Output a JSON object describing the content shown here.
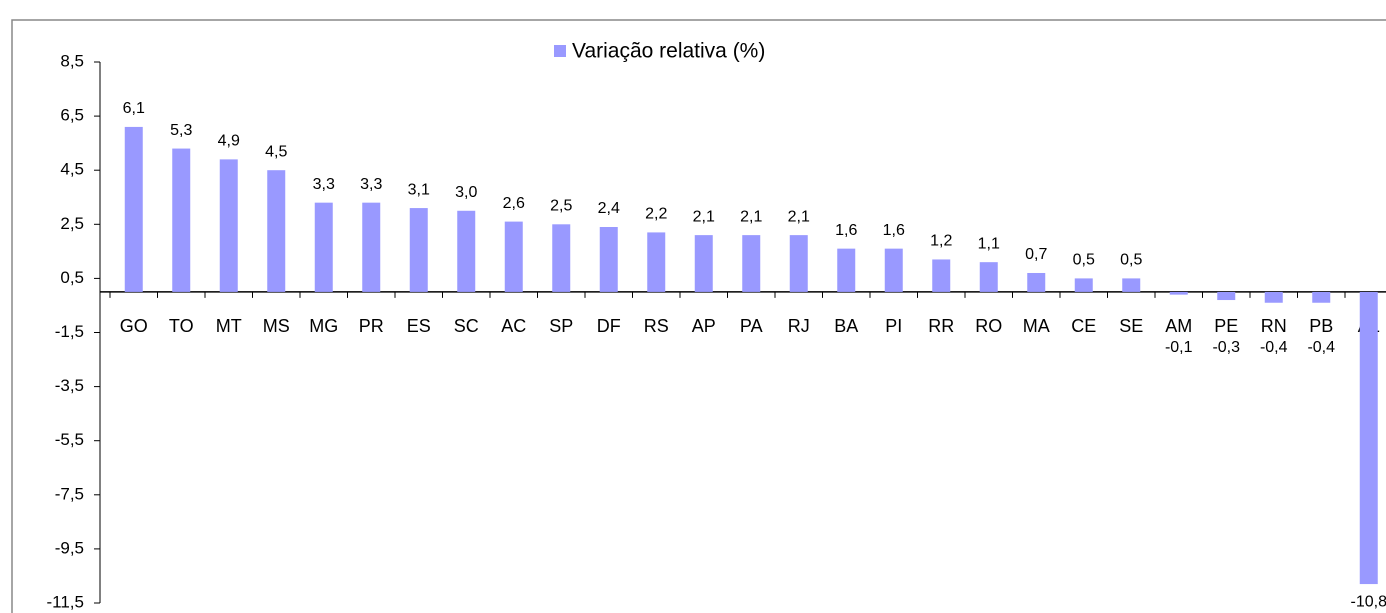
{
  "chart_data": {
    "type": "bar",
    "categories": [
      "GO",
      "TO",
      "MT",
      "MS",
      "MG",
      "PR",
      "ES",
      "SC",
      "AC",
      "SP",
      "DF",
      "RS",
      "AP",
      "PA",
      "RJ",
      "BA",
      "PI",
      "RR",
      "RO",
      "MA",
      "CE",
      "SE",
      "AM",
      "PE",
      "RN",
      "PB",
      "AL"
    ],
    "series": [
      {
        "name": "Variação relativa (%)",
        "color": "#9999ff",
        "values": [
          6.1,
          5.3,
          4.9,
          4.5,
          3.3,
          3.3,
          3.1,
          3.0,
          2.6,
          2.5,
          2.4,
          2.2,
          2.1,
          2.1,
          2.1,
          1.6,
          1.6,
          1.2,
          1.1,
          0.7,
          0.5,
          0.5,
          -0.1,
          -0.3,
          -0.4,
          -0.4,
          -10.8
        ],
        "value_labels": [
          "6,1",
          "5,3",
          "4,9",
          "4,5",
          "3,3",
          "3,3",
          "3,1",
          "3,0",
          "2,6",
          "2,5",
          "2,4",
          "2,2",
          "2,1",
          "2,1",
          "2,1",
          "1,6",
          "1,6",
          "1,2",
          "1,1",
          "0,7",
          "0,5",
          "0,5",
          "-0,1",
          "-0,3",
          "-0,4",
          "-0,4",
          "-10,8"
        ]
      }
    ],
    "ylim": [
      -11.5,
      8.5
    ],
    "yticks": [
      {
        "value": -11.5,
        "label": "-11,5"
      },
      {
        "value": -9.5,
        "label": "-9,5"
      },
      {
        "value": -7.5,
        "label": "-7,5"
      },
      {
        "value": -5.5,
        "label": "-5,5"
      },
      {
        "value": -3.5,
        "label": "-3,5"
      },
      {
        "value": -1.5,
        "label": "-1,5"
      },
      {
        "value": 0.5,
        "label": "0,5"
      },
      {
        "value": 2.5,
        "label": "2,5"
      },
      {
        "value": 4.5,
        "label": "4,5"
      },
      {
        "value": 6.5,
        "label": "6,5"
      },
      {
        "value": 8.5,
        "label": "8,5"
      }
    ],
    "legend": "top",
    "grid": false
  }
}
